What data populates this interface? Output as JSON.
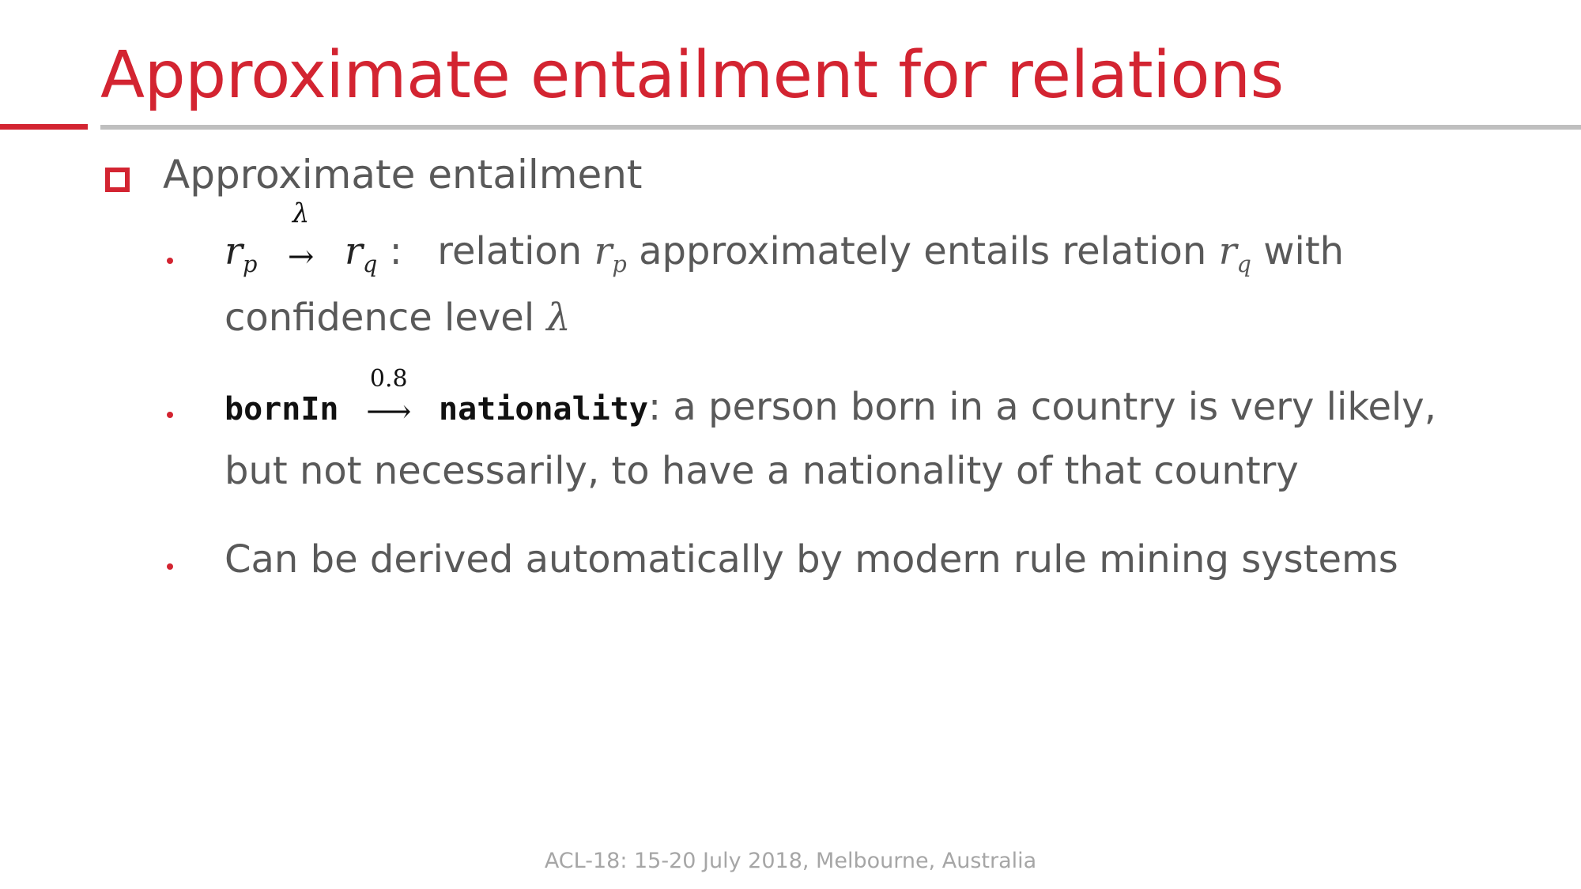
{
  "slide": {
    "title": "Approximate entailment for relations",
    "heading": "Approximate entailment",
    "bullet1": {
      "formula_lhs": "r",
      "formula_lhs_sub": "p",
      "formula_arrow_label": "λ",
      "formula_arrow": "→",
      "formula_rhs": "r",
      "formula_rhs_sub": "q",
      "colon": ":",
      "text_a": "relation",
      "var_a": "r",
      "var_a_sub": "p",
      "text_b": "approximately entails relation",
      "var_b": "r",
      "var_b_sub": "q",
      "text_c": "with",
      "line2_text": "confidence level",
      "line2_var": "λ"
    },
    "bullet2": {
      "lhs": "bornIn",
      "arrow_label": "0.8",
      "arrow": "⟶",
      "rhs": "nationality",
      "text_line1": ": a person born in a country is very likely,",
      "text_line2": "but not necessarily, to have a nationality of that country"
    },
    "bullet3": {
      "text": "Can be derived automatically by modern rule mining systems"
    },
    "footer": "ACL-18: 15-20 July 2018, Melbourne, Australia"
  },
  "colors": {
    "accent": "#d32431",
    "body_text": "#595959",
    "rule_gray": "#bfbfbf",
    "footer_text": "#a6a6a6"
  }
}
